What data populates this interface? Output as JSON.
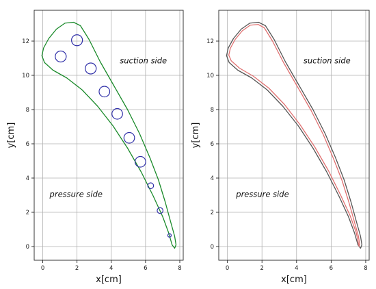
{
  "chart_data": [
    {
      "type": "line",
      "xlabel": "x[cm]",
      "ylabel": "y[cm]",
      "xlim": [
        -0.5,
        8.2
      ],
      "ylim": [
        -0.8,
        13.8
      ],
      "xticks": [
        0,
        2,
        4,
        6,
        8
      ],
      "yticks": [
        0,
        2,
        4,
        6,
        8,
        10,
        12
      ],
      "grid": true,
      "annotations": [
        {
          "text": "suction side",
          "x": 4.5,
          "y": 10.7
        },
        {
          "text": "pressure side",
          "x": 0.4,
          "y": 2.9
        }
      ],
      "series": [
        {
          "kind": "outline",
          "color": "#1a8a2a",
          "points": [
            [
              7.7,
              -0.1
            ],
            [
              7.78,
              0.1
            ],
            [
              7.7,
              0.6
            ],
            [
              7.45,
              1.5
            ],
            [
              7.15,
              2.6
            ],
            [
              6.75,
              3.9
            ],
            [
              6.25,
              5.2
            ],
            [
              5.65,
              6.6
            ],
            [
              4.95,
              8.0
            ],
            [
              4.15,
              9.4
            ],
            [
              3.35,
              10.8
            ],
            [
              2.7,
              12.1
            ],
            [
              2.2,
              12.9
            ],
            [
              1.8,
              13.1
            ],
            [
              1.3,
              13.05
            ],
            [
              0.8,
              12.7
            ],
            [
              0.35,
              12.15
            ],
            [
              0.05,
              11.6
            ],
            [
              -0.05,
              11.15
            ],
            [
              0.1,
              10.75
            ],
            [
              0.6,
              10.3
            ],
            [
              1.4,
              9.85
            ],
            [
              2.3,
              9.15
            ],
            [
              3.2,
              8.2
            ],
            [
              4.1,
              7.05
            ],
            [
              4.95,
              5.75
            ],
            [
              5.75,
              4.35
            ],
            [
              6.45,
              2.95
            ],
            [
              7.0,
              1.75
            ],
            [
              7.35,
              0.8
            ],
            [
              7.55,
              0.1
            ],
            [
              7.7,
              -0.1
            ]
          ]
        },
        {
          "kind": "holes",
          "color": "#2f2fa8",
          "circles": [
            {
              "x": 1.05,
              "y": 11.1,
              "r": 0.32
            },
            {
              "x": 2.0,
              "y": 12.05,
              "r": 0.32
            },
            {
              "x": 2.8,
              "y": 10.4,
              "r": 0.32
            },
            {
              "x": 3.6,
              "y": 9.05,
              "r": 0.31
            },
            {
              "x": 4.35,
              "y": 7.75,
              "r": 0.31
            },
            {
              "x": 5.05,
              "y": 6.35,
              "r": 0.31
            },
            {
              "x": 5.7,
              "y": 4.95,
              "r": 0.31
            },
            {
              "x": 6.3,
              "y": 3.55,
              "r": 0.17
            },
            {
              "x": 6.85,
              "y": 2.1,
              "r": 0.17
            },
            {
              "x": 7.4,
              "y": 0.65,
              "r": 0.1
            }
          ]
        }
      ]
    },
    {
      "type": "line",
      "xlabel": "x[cm]",
      "ylabel": "y[cm]",
      "xlim": [
        -0.5,
        8.2
      ],
      "ylim": [
        -0.8,
        13.8
      ],
      "xticks": [
        0,
        2,
        4,
        6,
        8
      ],
      "yticks": [
        0,
        2,
        4,
        6,
        8,
        10,
        12
      ],
      "grid": true,
      "annotations": [
        {
          "text": "suction side",
          "x": 4.4,
          "y": 10.7
        },
        {
          "text": "pressure side",
          "x": 0.5,
          "y": 2.9
        }
      ],
      "series": [
        {
          "kind": "outline",
          "color": "#555555",
          "points": [
            [
              7.7,
              -0.1
            ],
            [
              7.78,
              0.1
            ],
            [
              7.7,
              0.6
            ],
            [
              7.45,
              1.5
            ],
            [
              7.15,
              2.6
            ],
            [
              6.75,
              3.9
            ],
            [
              6.25,
              5.2
            ],
            [
              5.65,
              6.6
            ],
            [
              4.95,
              8.0
            ],
            [
              4.15,
              9.4
            ],
            [
              3.35,
              10.8
            ],
            [
              2.7,
              12.1
            ],
            [
              2.2,
              12.9
            ],
            [
              1.8,
              13.1
            ],
            [
              1.3,
              13.05
            ],
            [
              0.8,
              12.7
            ],
            [
              0.35,
              12.15
            ],
            [
              0.05,
              11.6
            ],
            [
              -0.05,
              11.15
            ],
            [
              0.1,
              10.75
            ],
            [
              0.6,
              10.3
            ],
            [
              1.4,
              9.85
            ],
            [
              2.3,
              9.15
            ],
            [
              3.2,
              8.2
            ],
            [
              4.1,
              7.05
            ],
            [
              4.95,
              5.75
            ],
            [
              5.75,
              4.35
            ],
            [
              6.45,
              2.95
            ],
            [
              7.0,
              1.75
            ],
            [
              7.35,
              0.8
            ],
            [
              7.55,
              0.1
            ],
            [
              7.7,
              -0.1
            ]
          ]
        },
        {
          "kind": "outline",
          "color": "#e07070",
          "points": [
            [
              7.62,
              0.0
            ],
            [
              7.65,
              0.15
            ],
            [
              7.58,
              0.6
            ],
            [
              7.33,
              1.5
            ],
            [
              7.03,
              2.58
            ],
            [
              6.63,
              3.86
            ],
            [
              6.13,
              5.15
            ],
            [
              5.54,
              6.55
            ],
            [
              4.84,
              7.95
            ],
            [
              4.05,
              9.34
            ],
            [
              3.25,
              10.74
            ],
            [
              2.61,
              12.0
            ],
            [
              2.13,
              12.78
            ],
            [
              1.78,
              12.97
            ],
            [
              1.32,
              12.93
            ],
            [
              0.86,
              12.6
            ],
            [
              0.45,
              12.1
            ],
            [
              0.17,
              11.58
            ],
            [
              0.08,
              11.18
            ],
            [
              0.22,
              10.85
            ],
            [
              0.7,
              10.42
            ],
            [
              1.5,
              9.95
            ],
            [
              2.4,
              9.25
            ],
            [
              3.3,
              8.3
            ],
            [
              4.2,
              7.12
            ],
            [
              5.05,
              5.82
            ],
            [
              5.85,
              4.42
            ],
            [
              6.55,
              3.0
            ],
            [
              7.1,
              1.8
            ],
            [
              7.45,
              0.82
            ],
            [
              7.58,
              0.18
            ],
            [
              7.62,
              0.0
            ]
          ]
        }
      ]
    }
  ]
}
